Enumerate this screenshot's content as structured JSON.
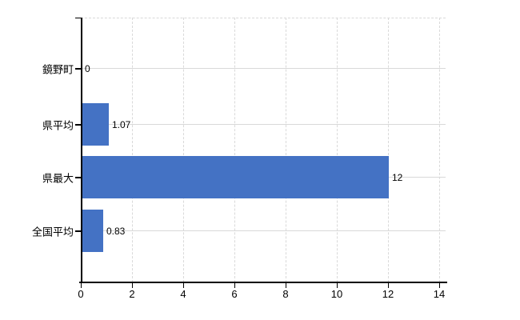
{
  "page": {
    "background_color": "#ffffff"
  },
  "chart_data": {
    "type": "bar",
    "orientation": "horizontal",
    "title": "",
    "categories": [
      "鏡野町",
      "県平均",
      "県最大",
      "全国平均"
    ],
    "values": [
      0,
      1.07,
      12,
      0.83
    ],
    "value_labels": [
      "0",
      "1.07",
      "12",
      "0.83"
    ],
    "xlabel": "",
    "ylabel": "",
    "xlim": [
      0,
      14
    ],
    "x_ticks": [
      0,
      2,
      4,
      6,
      8,
      10,
      12,
      14
    ],
    "x_tick_labels": [
      "0",
      "2",
      "4",
      "6",
      "8",
      "10",
      "12",
      "14"
    ],
    "grid": true,
    "legend": false,
    "bar_color": "#4472c4",
    "grid_color": "#d9d9d9",
    "axis_color": "#000000",
    "text_color": "#000000"
  }
}
